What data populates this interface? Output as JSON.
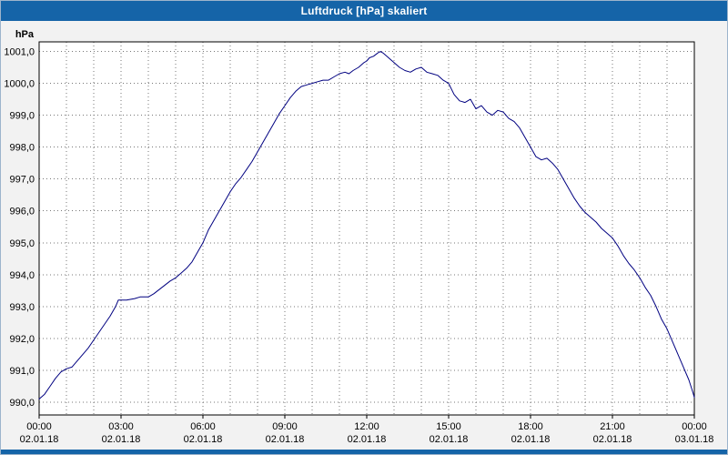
{
  "window": {
    "title": "Luftdruck [hPa] skaliert",
    "titlebar_color": "#1564a8",
    "background_color": "#f2f2f2"
  },
  "chart_data": {
    "type": "line",
    "title": "Luftdruck [hPa] skaliert",
    "ylabel": "hPa",
    "xlabel": "",
    "ylim": [
      989.6,
      1001.3
    ],
    "xlim_hours": [
      0,
      24
    ],
    "grid": "dotted gray, vertical every hour, horizontal every 1.0 hPa",
    "legend_position": "none",
    "y_ticks": [
      {
        "value": 1001,
        "label": "1001,0"
      },
      {
        "value": 1000,
        "label": "1000,0"
      },
      {
        "value": 999,
        "label": "999,0"
      },
      {
        "value": 998,
        "label": "998,0"
      },
      {
        "value": 997,
        "label": "997,0"
      },
      {
        "value": 996,
        "label": "996,0"
      },
      {
        "value": 995,
        "label": "995,0"
      },
      {
        "value": 994,
        "label": "994,0"
      },
      {
        "value": 993,
        "label": "993,0"
      },
      {
        "value": 992,
        "label": "992,0"
      },
      {
        "value": 991,
        "label": "991,0"
      },
      {
        "value": 990,
        "label": "990,0"
      }
    ],
    "x_ticks": [
      {
        "hour": 0,
        "time": "00:00",
        "date": "02.01.18"
      },
      {
        "hour": 3,
        "time": "03:00",
        "date": "02.01.18"
      },
      {
        "hour": 6,
        "time": "06:00",
        "date": "02.01.18"
      },
      {
        "hour": 9,
        "time": "09:00",
        "date": "02.01.18"
      },
      {
        "hour": 12,
        "time": "12:00",
        "date": "02.01.18"
      },
      {
        "hour": 15,
        "time": "15:00",
        "date": "02.01.18"
      },
      {
        "hour": 18,
        "time": "18:00",
        "date": "02.01.18"
      },
      {
        "hour": 21,
        "time": "21:00",
        "date": "02.01.18"
      },
      {
        "hour": 24,
        "time": "00:00",
        "date": "03.01.18"
      }
    ],
    "series": [
      {
        "name": "Luftdruck [hPa]",
        "color": "#000080",
        "points": [
          [
            0.0,
            990.1
          ],
          [
            0.2,
            990.25
          ],
          [
            0.4,
            990.5
          ],
          [
            0.6,
            990.75
          ],
          [
            0.8,
            990.95
          ],
          [
            1.0,
            991.05
          ],
          [
            1.2,
            991.1
          ],
          [
            1.4,
            991.3
          ],
          [
            1.6,
            991.5
          ],
          [
            1.8,
            991.7
          ],
          [
            2.0,
            991.95
          ],
          [
            2.2,
            992.2
          ],
          [
            2.4,
            992.45
          ],
          [
            2.6,
            992.7
          ],
          [
            2.8,
            993.0
          ],
          [
            2.9,
            993.2
          ],
          [
            3.2,
            993.2
          ],
          [
            3.5,
            993.25
          ],
          [
            3.7,
            993.3
          ],
          [
            4.0,
            993.3
          ],
          [
            4.2,
            993.4
          ],
          [
            4.5,
            993.6
          ],
          [
            4.8,
            993.8
          ],
          [
            5.0,
            993.9
          ],
          [
            5.2,
            994.05
          ],
          [
            5.4,
            994.2
          ],
          [
            5.6,
            994.4
          ],
          [
            5.8,
            994.7
          ],
          [
            6.0,
            995.0
          ],
          [
            6.2,
            995.4
          ],
          [
            6.4,
            995.7
          ],
          [
            6.6,
            996.0
          ],
          [
            6.8,
            996.3
          ],
          [
            7.0,
            996.6
          ],
          [
            7.2,
            996.85
          ],
          [
            7.4,
            997.05
          ],
          [
            7.6,
            997.3
          ],
          [
            7.8,
            997.55
          ],
          [
            8.0,
            997.85
          ],
          [
            8.2,
            998.15
          ],
          [
            8.4,
            998.45
          ],
          [
            8.6,
            998.75
          ],
          [
            8.8,
            999.05
          ],
          [
            9.0,
            999.3
          ],
          [
            9.2,
            999.55
          ],
          [
            9.4,
            999.75
          ],
          [
            9.6,
            999.9
          ],
          [
            9.8,
            999.95
          ],
          [
            10.0,
            1000.0
          ],
          [
            10.2,
            1000.05
          ],
          [
            10.4,
            1000.1
          ],
          [
            10.6,
            1000.1
          ],
          [
            10.8,
            1000.2
          ],
          [
            11.0,
            1000.3
          ],
          [
            11.2,
            1000.35
          ],
          [
            11.35,
            1000.3
          ],
          [
            11.5,
            1000.4
          ],
          [
            11.7,
            1000.5
          ],
          [
            11.9,
            1000.65
          ],
          [
            12.0,
            1000.7
          ],
          [
            12.1,
            1000.8
          ],
          [
            12.25,
            1000.85
          ],
          [
            12.4,
            1000.95
          ],
          [
            12.5,
            1001.0
          ],
          [
            12.6,
            1000.95
          ],
          [
            12.8,
            1000.8
          ],
          [
            13.0,
            1000.65
          ],
          [
            13.2,
            1000.5
          ],
          [
            13.4,
            1000.4
          ],
          [
            13.6,
            1000.35
          ],
          [
            13.8,
            1000.45
          ],
          [
            14.0,
            1000.5
          ],
          [
            14.2,
            1000.35
          ],
          [
            14.4,
            1000.3
          ],
          [
            14.6,
            1000.25
          ],
          [
            14.8,
            1000.1
          ],
          [
            15.0,
            1000.0
          ],
          [
            15.2,
            999.65
          ],
          [
            15.4,
            999.45
          ],
          [
            15.6,
            999.4
          ],
          [
            15.8,
            999.5
          ],
          [
            16.0,
            999.2
          ],
          [
            16.2,
            999.3
          ],
          [
            16.4,
            999.1
          ],
          [
            16.6,
            999.0
          ],
          [
            16.8,
            999.15
          ],
          [
            17.0,
            999.1
          ],
          [
            17.2,
            998.9
          ],
          [
            17.4,
            998.8
          ],
          [
            17.6,
            998.6
          ],
          [
            17.8,
            998.3
          ],
          [
            18.0,
            998.0
          ],
          [
            18.2,
            997.7
          ],
          [
            18.4,
            997.6
          ],
          [
            18.6,
            997.65
          ],
          [
            18.8,
            997.5
          ],
          [
            19.0,
            997.3
          ],
          [
            19.2,
            997.0
          ],
          [
            19.4,
            996.7
          ],
          [
            19.6,
            996.4
          ],
          [
            19.8,
            996.15
          ],
          [
            20.0,
            995.95
          ],
          [
            20.2,
            995.8
          ],
          [
            20.4,
            995.65
          ],
          [
            20.6,
            995.45
          ],
          [
            20.8,
            995.3
          ],
          [
            21.0,
            995.15
          ],
          [
            21.2,
            994.9
          ],
          [
            21.4,
            994.6
          ],
          [
            21.6,
            994.35
          ],
          [
            21.8,
            994.15
          ],
          [
            22.0,
            993.9
          ],
          [
            22.2,
            993.6
          ],
          [
            22.4,
            993.35
          ],
          [
            22.6,
            993.0
          ],
          [
            22.8,
            992.6
          ],
          [
            23.0,
            992.3
          ],
          [
            23.2,
            991.9
          ],
          [
            23.4,
            991.5
          ],
          [
            23.6,
            991.1
          ],
          [
            23.8,
            990.7
          ],
          [
            23.95,
            990.3
          ],
          [
            24.0,
            990.15
          ]
        ]
      }
    ]
  }
}
